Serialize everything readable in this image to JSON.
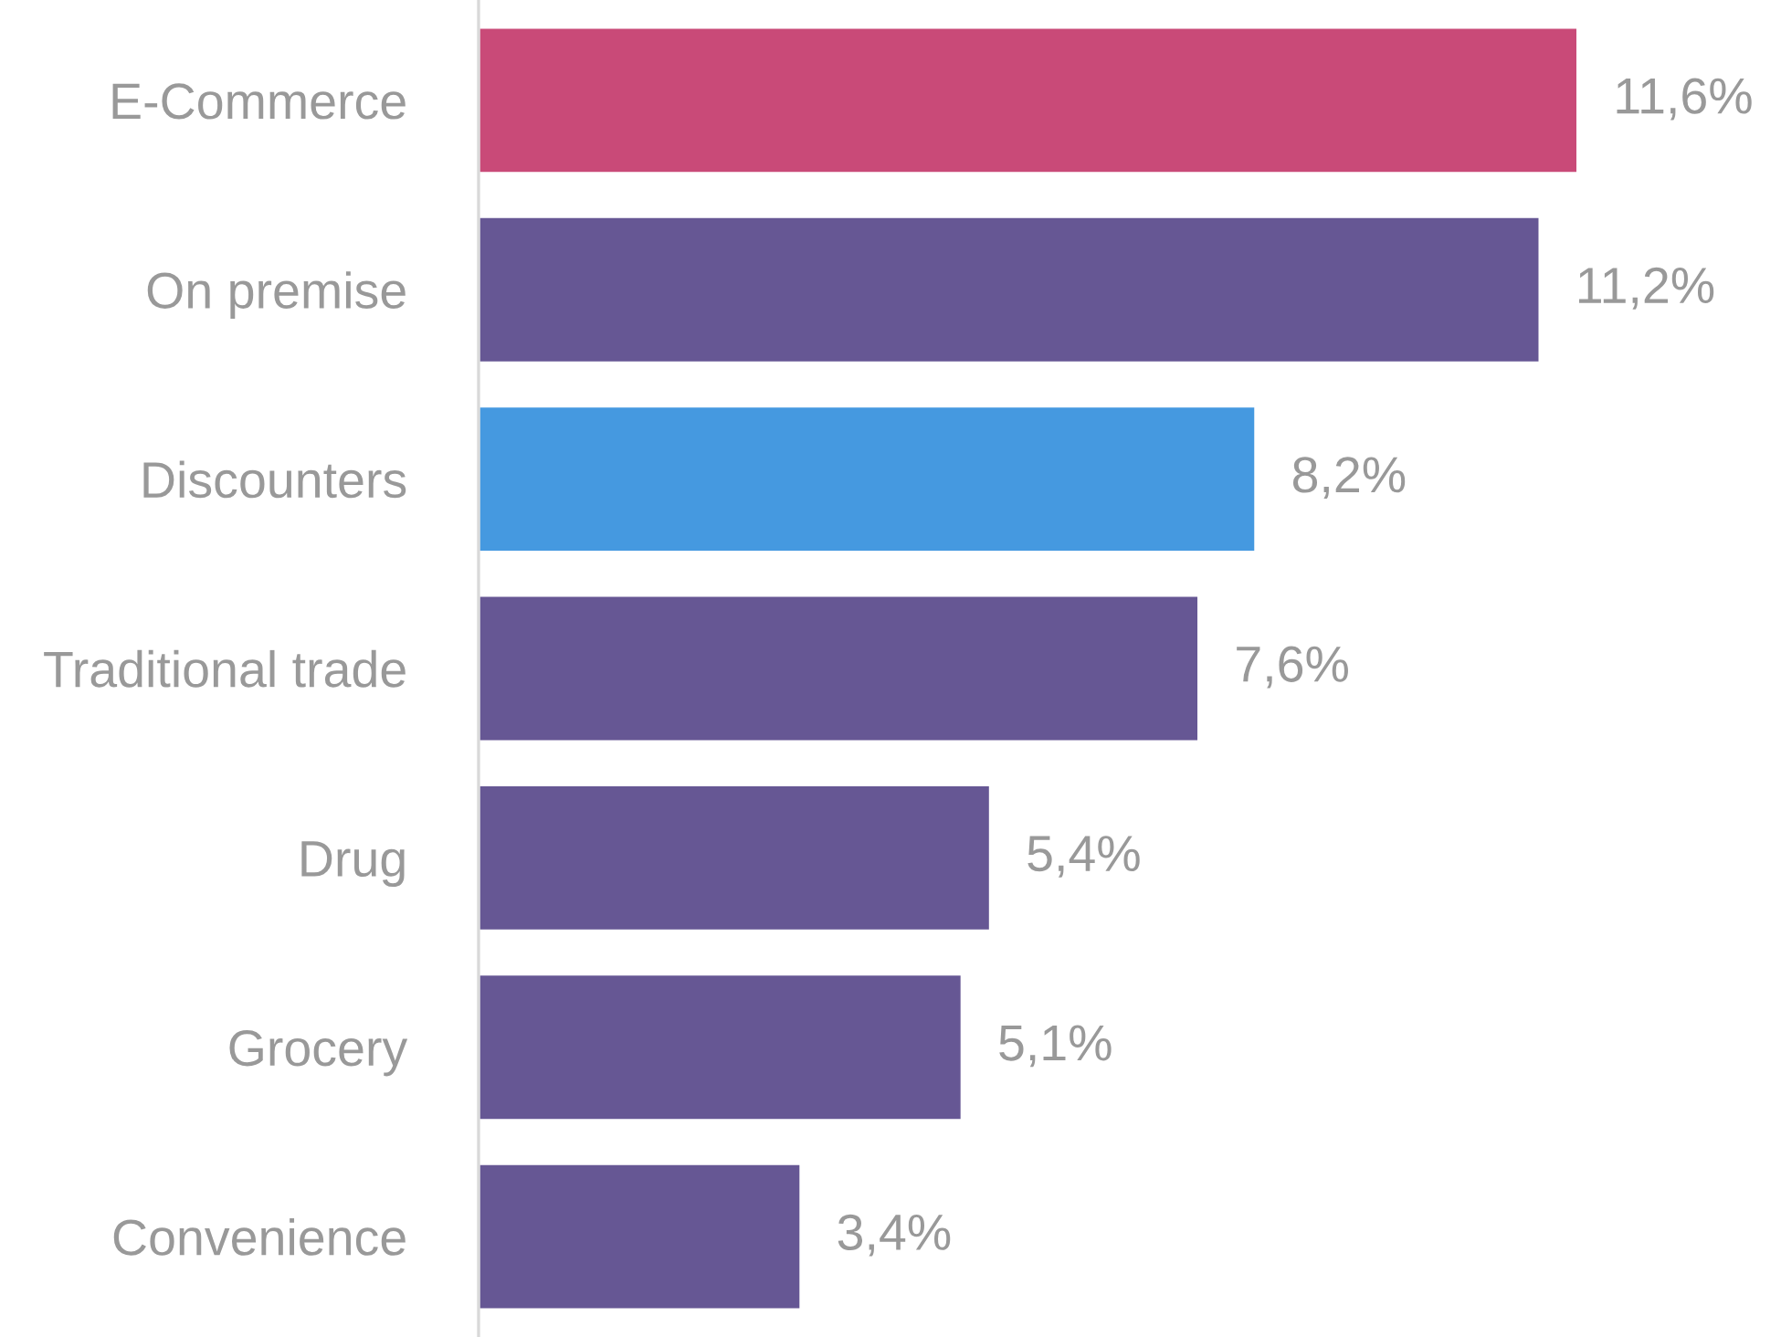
{
  "chart_data": {
    "type": "bar",
    "orientation": "horizontal",
    "categories": [
      "E-Commerce",
      "On premise",
      "Discounters",
      "Traditional trade",
      "Drug",
      "Grocery",
      "Convenience"
    ],
    "values": [
      11.6,
      11.2,
      8.2,
      7.6,
      5.4,
      5.1,
      3.4
    ],
    "value_labels": [
      "11,6%",
      "11,2%",
      "8,2%",
      "7,6%",
      "5,4%",
      "5,1%",
      "3,4%"
    ],
    "colors": [
      "#c94a78",
      "#665794",
      "#4599e0",
      "#665794",
      "#665794",
      "#665794",
      "#665794"
    ],
    "grid": false,
    "legend": false
  }
}
